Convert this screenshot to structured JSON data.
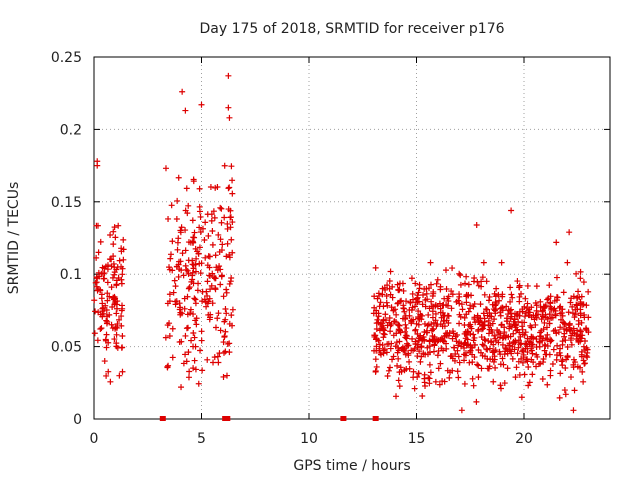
{
  "chart_data": {
    "type": "scatter",
    "title": "Day 175 of 2018, SRMTID for receiver p176",
    "xlabel": "GPS time / hours",
    "ylabel": "SRMTID / TECUs",
    "xlim": [
      0,
      24
    ],
    "ylim": [
      0,
      0.25
    ],
    "xticks": [
      0,
      5,
      10,
      15,
      20
    ],
    "xtick_labels": [
      "0",
      "5",
      "10",
      "15",
      "20"
    ],
    "yticks": [
      0,
      0.05,
      0.1,
      0.15,
      0.2,
      0.25
    ],
    "ytick_labels": [
      "0",
      "0.05",
      "0.1",
      "0.15",
      "0.2",
      "0.25"
    ],
    "grid": true,
    "marker": "plus",
    "color": "#dd0000",
    "clusters": [
      {
        "x_range": [
          0.0,
          1.4
        ],
        "y_center": 0.085,
        "y_spread": 0.025,
        "y_min": 0.025,
        "y_max": 0.178,
        "count": 130
      },
      {
        "x_range": [
          3.3,
          6.5
        ],
        "y_center": 0.1,
        "y_spread": 0.035,
        "y_min": 0.022,
        "y_max": 0.237,
        "count": 260
      },
      {
        "x_range": [
          13.0,
          23.0
        ],
        "y_center": 0.062,
        "y_spread": 0.018,
        "y_min": 0.006,
        "y_max": 0.144,
        "count": 950
      }
    ],
    "outliers": [
      {
        "x": 0.15,
        "y": 0.178
      },
      {
        "x": 0.15,
        "y": 0.175
      },
      {
        "x": 4.1,
        "y": 0.226
      },
      {
        "x": 4.25,
        "y": 0.213
      },
      {
        "x": 5.0,
        "y": 0.217
      },
      {
        "x": 6.25,
        "y": 0.237
      },
      {
        "x": 6.25,
        "y": 0.215
      },
      {
        "x": 6.3,
        "y": 0.208
      },
      {
        "x": 19.4,
        "y": 0.144
      },
      {
        "x": 22.1,
        "y": 0.129
      },
      {
        "x": 21.5,
        "y": 0.122
      },
      {
        "x": 17.8,
        "y": 0.134
      },
      {
        "x": 21.9,
        "y": 0.02
      },
      {
        "x": 22.3,
        "y": 0.006
      },
      {
        "x": 19.9,
        "y": 0.015
      }
    ],
    "zero_markers": [
      {
        "x": 3.2,
        "y": 0
      },
      {
        "x": 6.1,
        "y": 0
      },
      {
        "x": 6.2,
        "y": 0
      },
      {
        "x": 11.6,
        "y": 0
      },
      {
        "x": 13.1,
        "y": 0
      }
    ]
  }
}
